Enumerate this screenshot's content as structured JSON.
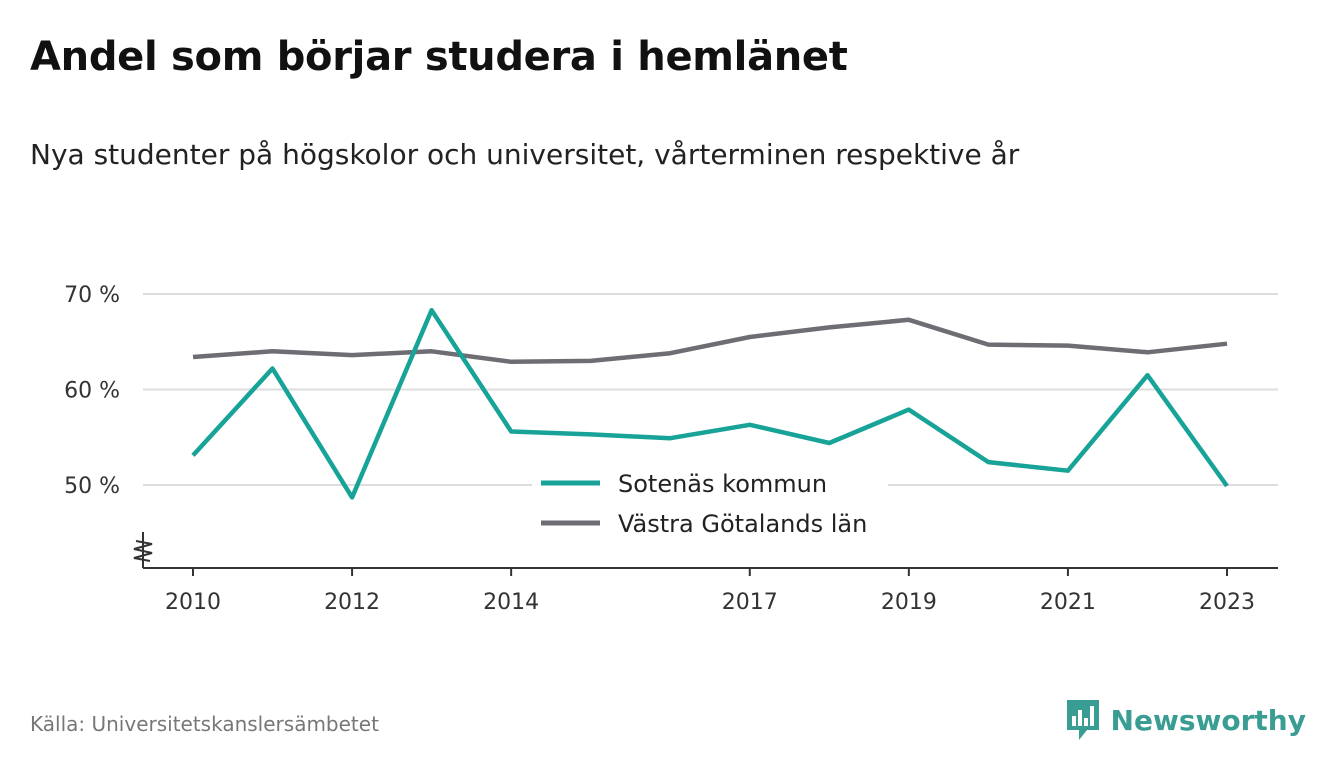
{
  "header": {
    "title": "Andel som börjar studera i hemlänet",
    "subtitle": "Nya studenter på högskolor och universitet, vårterminen respektive år"
  },
  "footer": {
    "source": "Källa: Universitetskanslersämbetet",
    "brand": "Newsworthy",
    "brand_icon": "newsworthy-logo-icon"
  },
  "colors": {
    "sotenas": "#17a397",
    "vastra": "#6e6d74",
    "grid": "#dddddd",
    "axis": "#333333",
    "brand": "#3a9d93"
  },
  "chart_data": {
    "type": "line",
    "title": "Andel som börjar studera i hemlänet",
    "subtitle": "Nya studenter på högskolor och universitet, vårterminen respektive år",
    "x": [
      2010,
      2011,
      2012,
      2013,
      2014,
      2015,
      2016,
      2017,
      2018,
      2019,
      2020,
      2021,
      2022,
      2023
    ],
    "x_tick_values": [
      2010,
      2012,
      2014,
      2017,
      2019,
      2021,
      2023
    ],
    "x_tick_labels": [
      "2010",
      "2012",
      "2014",
      "2017",
      "2019",
      "2021",
      "2023"
    ],
    "y_tick_values": [
      50,
      60,
      70
    ],
    "y_tick_labels": [
      "50 %",
      "60 %",
      "70 %"
    ],
    "ylim": [
      43,
      72
    ],
    "xlim": [
      2009.4,
      2023.7
    ],
    "axis_break": true,
    "grid": true,
    "legend_position": "center-bottom",
    "series": [
      {
        "name": "Sotenäs kommun",
        "color": "#17a397",
        "values": [
          53.1,
          62.2,
          48.7,
          68.3,
          55.6,
          55.3,
          54.9,
          56.3,
          54.4,
          57.9,
          52.4,
          51.5,
          61.5,
          49.9
        ]
      },
      {
        "name": "Västra Götalands län",
        "color": "#6e6d74",
        "values": [
          63.4,
          64.0,
          63.6,
          64.0,
          62.9,
          63.0,
          63.8,
          65.5,
          66.5,
          67.3,
          64.7,
          64.6,
          63.9,
          64.8
        ]
      }
    ]
  }
}
